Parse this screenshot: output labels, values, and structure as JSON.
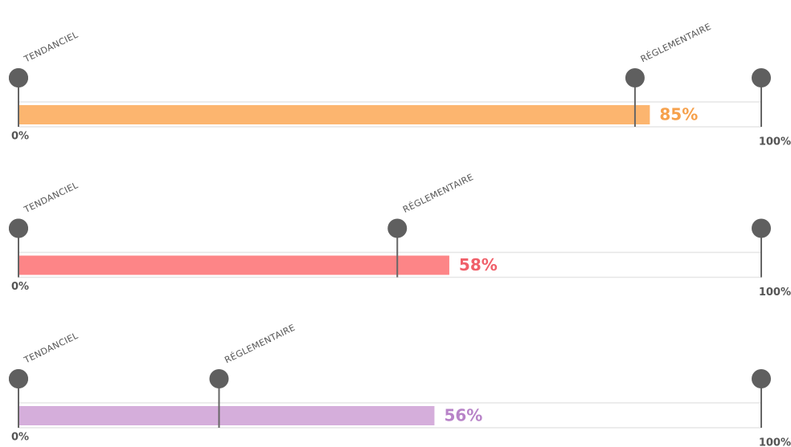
{
  "chart_data": [
    {
      "type": "bar",
      "values": [
        85
      ],
      "value_labels": [
        "85%"
      ],
      "color": "#fcb56f",
      "label_color": "#f6a14c",
      "xlim": [
        0,
        100
      ],
      "xticks": [
        {
          "value": 0,
          "label": "0%"
        },
        {
          "value": 100,
          "label": "100%"
        }
      ],
      "markers": [
        {
          "label": "TENDANCIEL",
          "value": 0
        },
        {
          "label": "RÉGLEMENTAIRE",
          "value": 83
        }
      ]
    },
    {
      "type": "bar",
      "values": [
        58
      ],
      "value_labels": [
        "58%"
      ],
      "color": "#fd8587",
      "label_color": "#f0606a",
      "xlim": [
        0,
        100
      ],
      "xticks": [
        {
          "value": 0,
          "label": "0%"
        },
        {
          "value": 100,
          "label": "100%"
        }
      ],
      "markers": [
        {
          "label": "TENDANCIEL",
          "value": 0
        },
        {
          "label": "RÉGLEMENTAIRE",
          "value": 51
        }
      ]
    },
    {
      "type": "bar",
      "values": [
        56
      ],
      "value_labels": [
        "56%"
      ],
      "color": "#d5aedb",
      "label_color": "#b883c8",
      "xlim": [
        0,
        100
      ],
      "xticks": [
        {
          "value": 0,
          "label": "0%"
        },
        {
          "value": 100,
          "label": "100%"
        }
      ],
      "markers": [
        {
          "label": "TENDANCIEL",
          "value": 0
        },
        {
          "label": "RÉGLEMENTAIRE",
          "value": 27
        }
      ]
    }
  ]
}
